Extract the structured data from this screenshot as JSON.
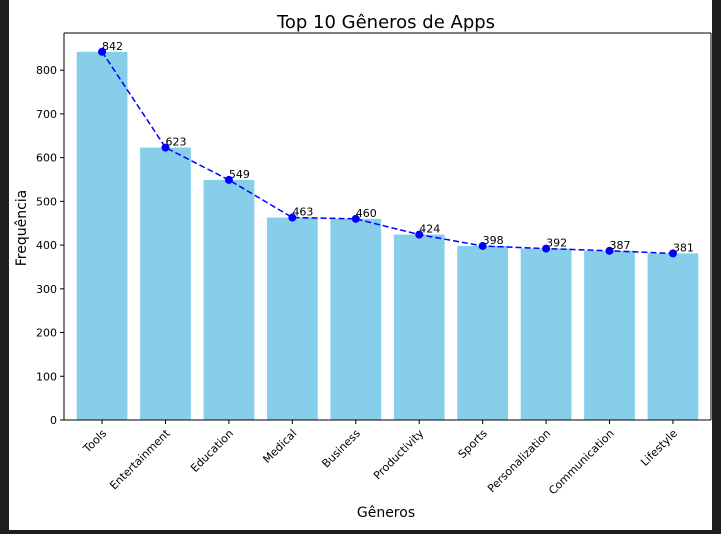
{
  "chart_data": {
    "type": "bar",
    "title": "Top 10 Gêneros de Apps",
    "xlabel": "Gêneros",
    "ylabel": "Frequência",
    "categories": [
      "Tools",
      "Entertainment",
      "Education",
      "Medical",
      "Business",
      "Productivity",
      "Sports",
      "Personalization",
      "Communication",
      "Lifestyle"
    ],
    "values": [
      842,
      623,
      549,
      463,
      460,
      424,
      398,
      392,
      387,
      381
    ],
    "ylim": [
      0,
      885
    ],
    "yticks": [
      0,
      100,
      200,
      300,
      400,
      500,
      600,
      700,
      800
    ],
    "overlay_line": {
      "style": "dashed",
      "markers": "circle"
    },
    "grid": false,
    "colors": {
      "bar": "#87ceeb",
      "line": "#0000ff",
      "marker": "#0000ff"
    }
  }
}
